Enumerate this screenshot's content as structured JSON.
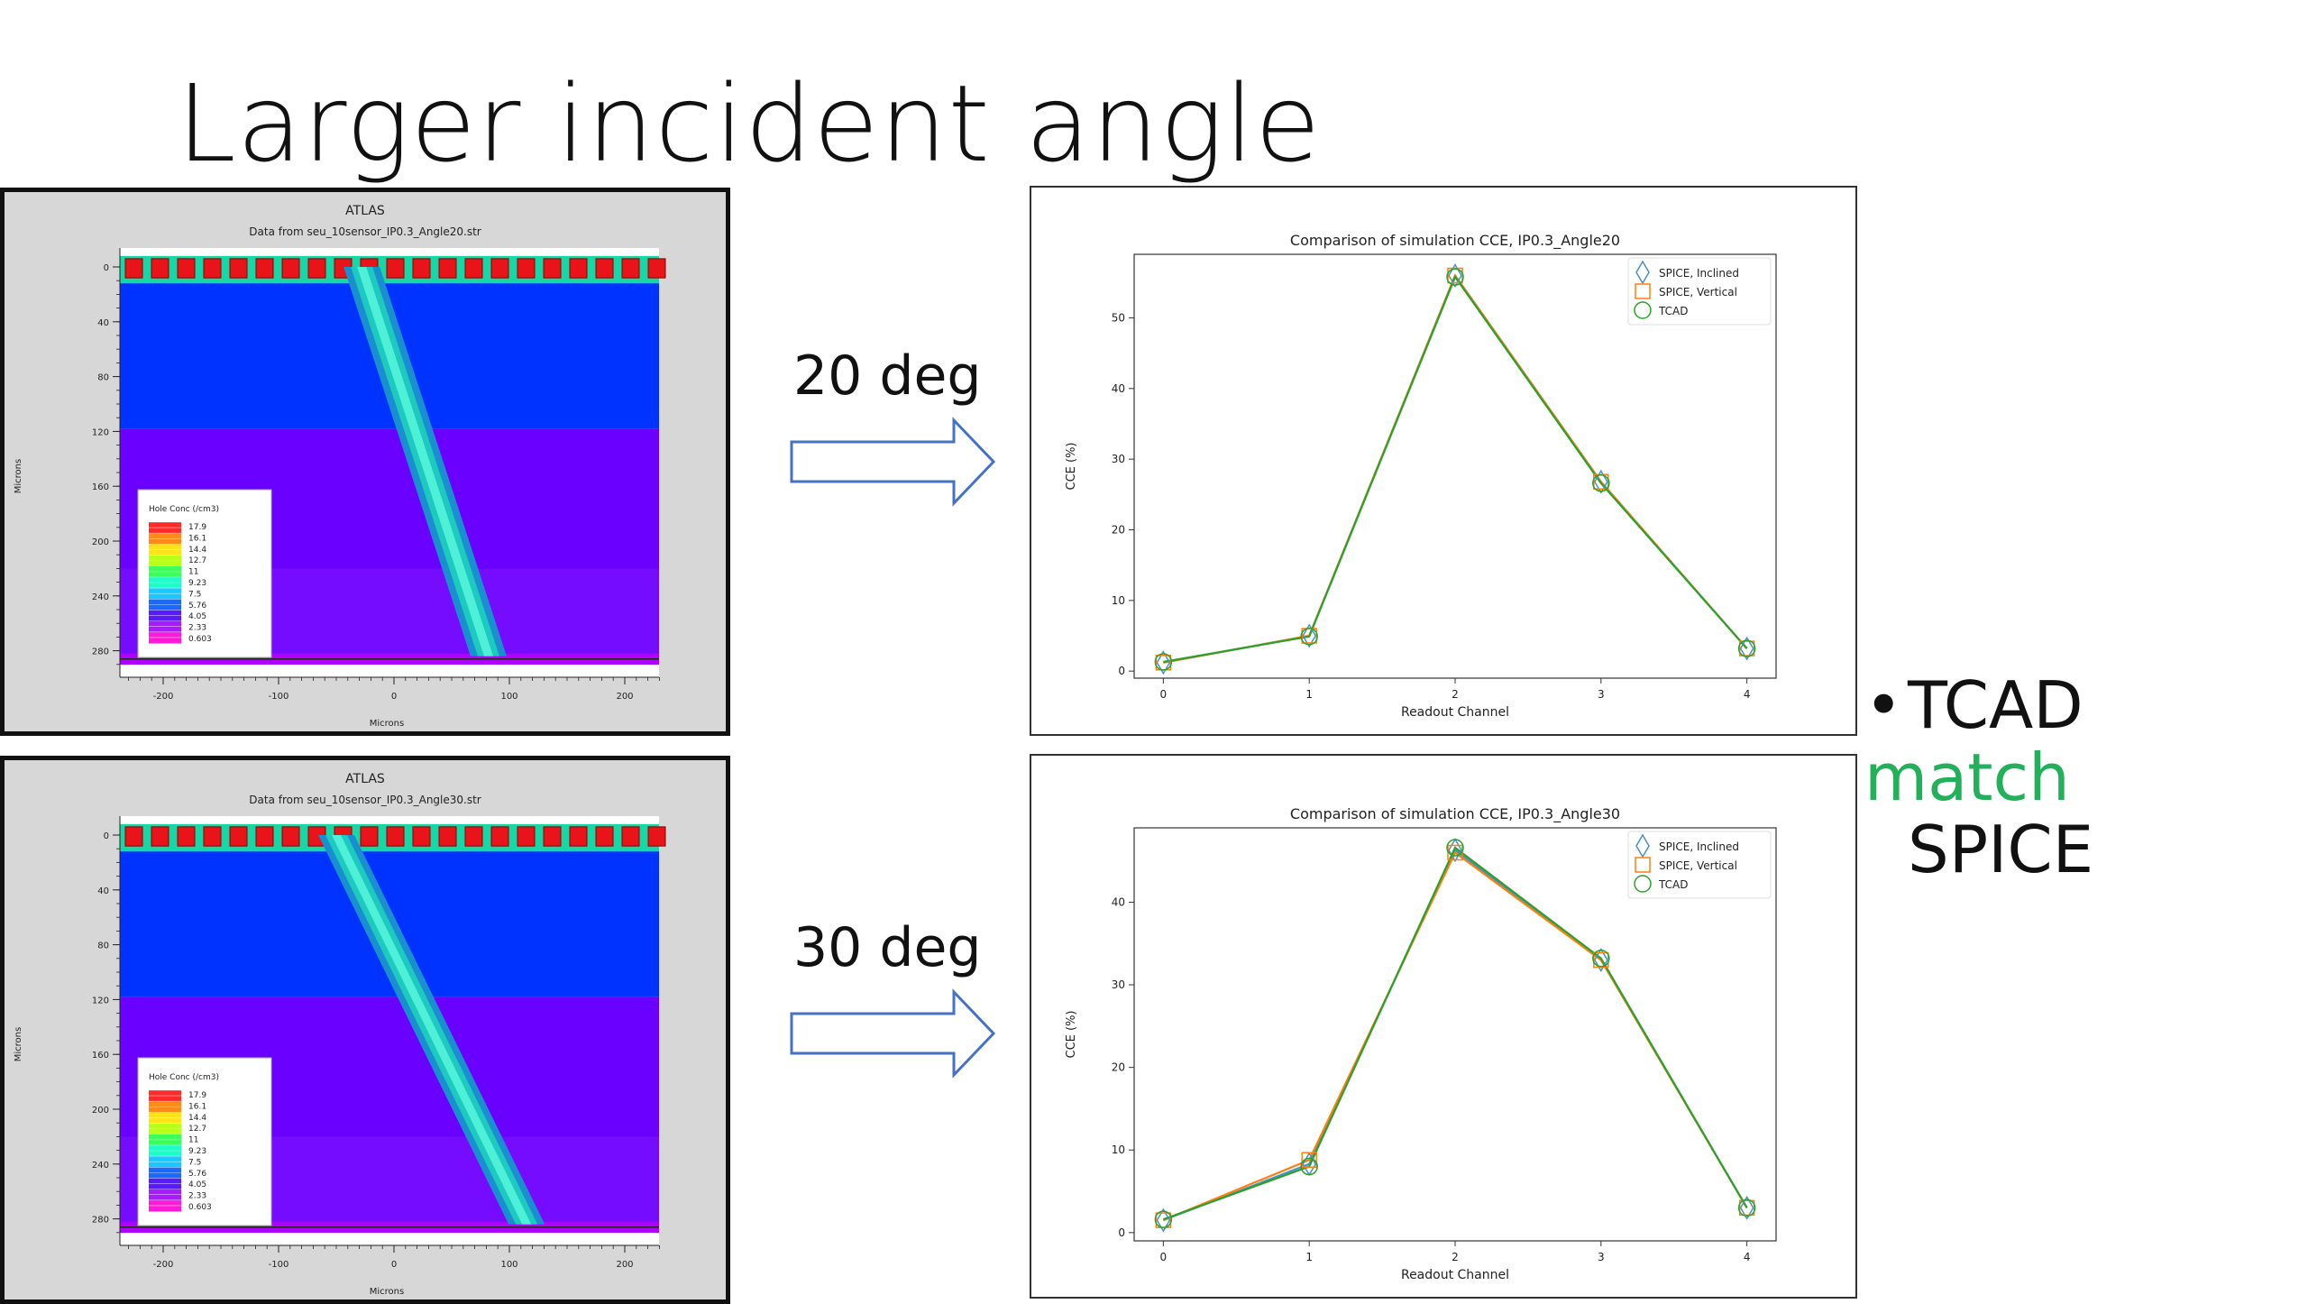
{
  "slide": {
    "title": "Larger incident angle",
    "bullet": {
      "part1": "TCAD",
      "highlight": "match",
      "part2": "SPICE"
    },
    "highlight_color": "#22b05a"
  },
  "simulations": [
    {
      "deg_label": "20 deg",
      "atlas": {
        "header": "ATLAS",
        "subtitle": "Data from seu_10sensor_IP0.3_Angle20.str",
        "ylabel": "Microns",
        "xlabel": "Microns",
        "legend_title": "Hole Conc (/cm3)",
        "legend_values": [
          "17.9",
          "16.1",
          "14.4",
          "12.7",
          "11",
          "9.23",
          "7.5",
          "5.76",
          "4.05",
          "2.33",
          "0.603"
        ],
        "x_ticks": [
          "-200",
          "-100",
          "0",
          "100",
          "200"
        ],
        "y_ticks": [
          "0",
          "40",
          "80",
          "120",
          "160",
          "200",
          "240",
          "280"
        ],
        "track": {
          "top_x_um": -28,
          "bottom_x_um": 82
        }
      }
    },
    {
      "deg_label": "30 deg",
      "atlas": {
        "header": "ATLAS",
        "subtitle": "Data from seu_10sensor_IP0.3_Angle30.str",
        "ylabel": "Microns",
        "xlabel": "Microns",
        "legend_title": "Hole Conc (/cm3)",
        "legend_values": [
          "17.9",
          "16.1",
          "14.4",
          "12.7",
          "11",
          "9.23",
          "7.5",
          "5.76",
          "4.05",
          "2.33",
          "0.603"
        ],
        "x_ticks": [
          "-200",
          "-100",
          "0",
          "100",
          "200"
        ],
        "y_ticks": [
          "0",
          "40",
          "80",
          "120",
          "160",
          "200",
          "240",
          "280"
        ],
        "track": {
          "top_x_um": -50,
          "bottom_x_um": 115
        }
      }
    }
  ],
  "colors": {
    "inclined": "#4a90c8",
    "vertical": "#ff7f0e",
    "tcad": "#2ca02c",
    "arrow": "#4472c4",
    "atlas_blue": "#0033ff",
    "atlas_purple": "#6a00ff"
  },
  "chart_data": [
    {
      "type": "line",
      "title": "Comparison of simulation CCE, IP0.3_Angle20",
      "xlabel": "Readout Channel",
      "ylabel": "CCE (%)",
      "x": [
        0,
        1,
        2,
        3,
        4
      ],
      "xlim": [
        -0.2,
        4.2
      ],
      "ylim": [
        -1,
        59
      ],
      "yticks": [
        0,
        10,
        20,
        30,
        40,
        50
      ],
      "legend_position": "top-right",
      "grid": false,
      "series": [
        {
          "name": "SPICE, Inclined",
          "marker": "diamond",
          "values": [
            1.2,
            5.0,
            56.0,
            26.8,
            3.2
          ]
        },
        {
          "name": "SPICE, Vertical",
          "marker": "square",
          "values": [
            1.2,
            5.0,
            56.0,
            26.8,
            3.2
          ]
        },
        {
          "name": "TCAD",
          "marker": "circle",
          "values": [
            1.3,
            4.9,
            55.8,
            26.6,
            3.2
          ]
        }
      ]
    },
    {
      "type": "line",
      "title": "Comparison of simulation CCE, IP0.3_Angle30",
      "xlabel": "Readout Channel",
      "ylabel": "CCE (%)",
      "x": [
        0,
        1,
        2,
        3,
        4
      ],
      "xlim": [
        -0.2,
        4.2
      ],
      "ylim": [
        -1,
        49
      ],
      "yticks": [
        0,
        10,
        20,
        30,
        40
      ],
      "legend_position": "top-right",
      "grid": false,
      "series": [
        {
          "name": "SPICE, Inclined",
          "marker": "diamond",
          "values": [
            1.5,
            8.3,
            46.3,
            33.0,
            3.0
          ]
        },
        {
          "name": "SPICE, Vertical",
          "marker": "square",
          "values": [
            1.5,
            8.8,
            46.0,
            33.0,
            3.0
          ]
        },
        {
          "name": "TCAD",
          "marker": "circle",
          "values": [
            1.6,
            8.0,
            46.6,
            33.2,
            3.0
          ]
        }
      ]
    }
  ]
}
